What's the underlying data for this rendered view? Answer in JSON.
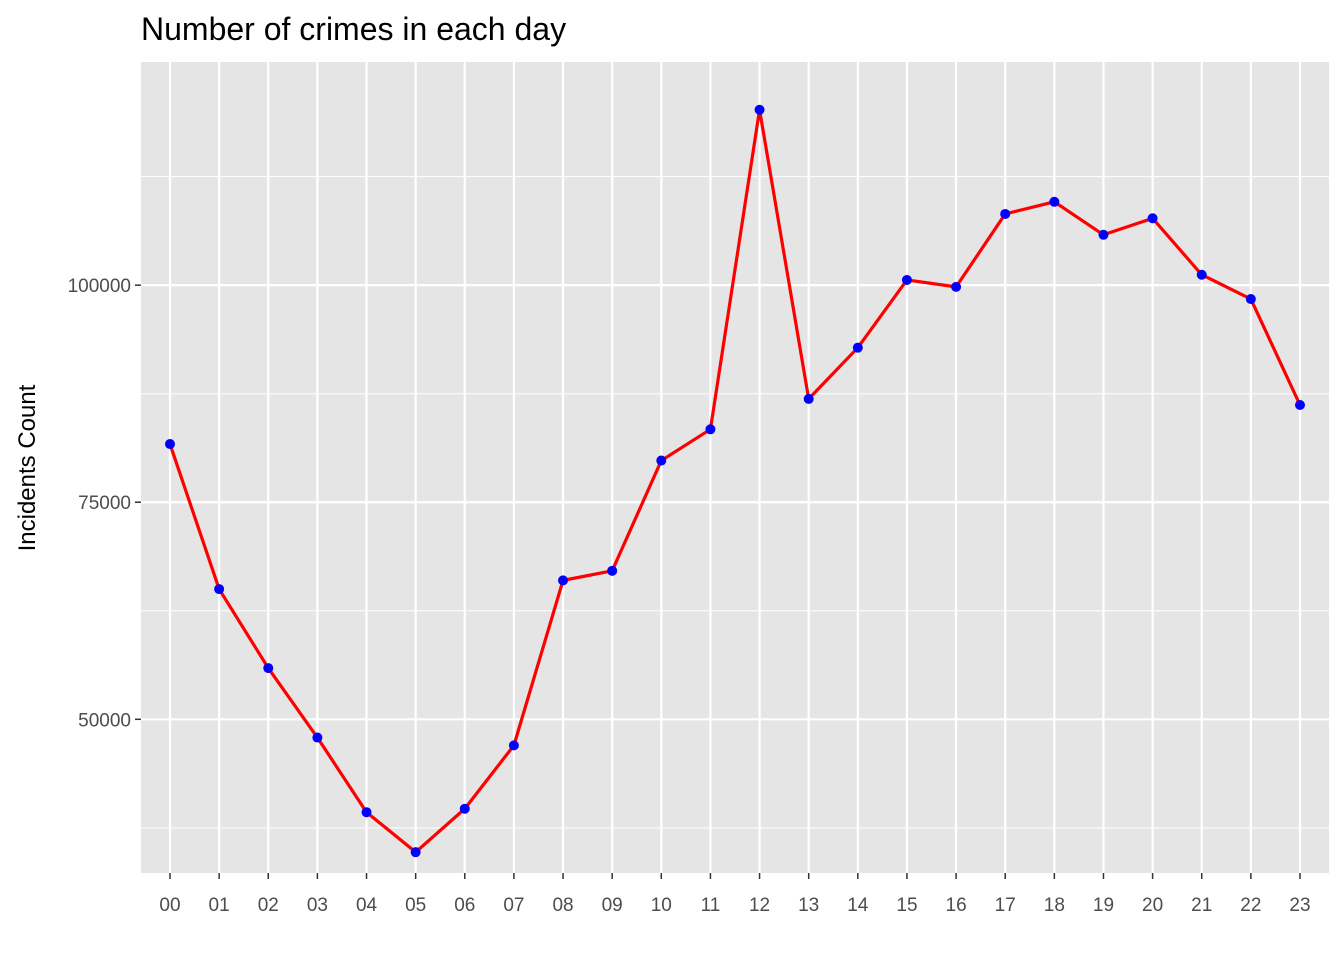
{
  "colors": {
    "panel_background": "#e5e5e5",
    "gridline": "#ffffff",
    "line": "#ff0000",
    "point": "#0000ff",
    "tick_text": "#4d4d4d",
    "title_text": "#000000"
  },
  "chart_data": {
    "type": "line",
    "title": "Number of crimes in each day",
    "xlabel": "",
    "ylabel": "Incidents Count",
    "categories": [
      "00",
      "01",
      "02",
      "03",
      "04",
      "05",
      "06",
      "07",
      "08",
      "09",
      "10",
      "11",
      "12",
      "13",
      "14",
      "15",
      "16",
      "17",
      "18",
      "19",
      "20",
      "21",
      "22",
      "23"
    ],
    "values": [
      81700,
      65000,
      55900,
      47900,
      39300,
      34700,
      39700,
      47000,
      66000,
      67100,
      79800,
      83400,
      120200,
      86900,
      92800,
      100600,
      99800,
      108200,
      109600,
      105800,
      107700,
      101200,
      98400,
      86200
    ],
    "y_ticks": [
      50000,
      75000,
      100000
    ],
    "y_tick_labels": [
      "50000",
      "75000",
      "100000"
    ],
    "ylim": [
      32300,
      125700
    ],
    "grid": true,
    "legend": "none",
    "markers": true
  }
}
